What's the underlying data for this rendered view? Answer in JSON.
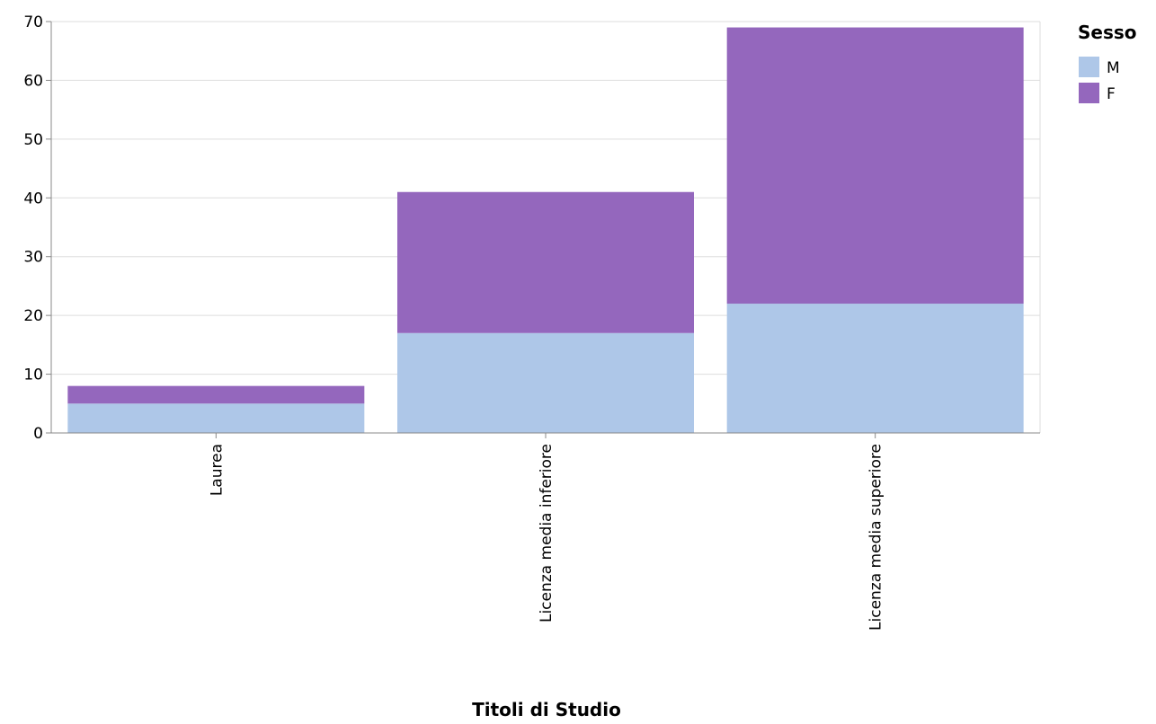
{
  "chart_data": {
    "type": "bar",
    "stacked": true,
    "categories": [
      "Laurea",
      "Licenza media inferiore",
      "Licenza media superiore"
    ],
    "series": [
      {
        "name": "M",
        "values": [
          5,
          17,
          22
        ],
        "color": "#aec7e8"
      },
      {
        "name": "F",
        "values": [
          3,
          24,
          47
        ],
        "color": "#9467bd"
      }
    ],
    "xlabel": "Titoli di Studio",
    "ylabel": "",
    "ylim": [
      0,
      70
    ],
    "yticks": [
      0,
      10,
      20,
      30,
      40,
      50,
      60,
      70
    ],
    "grid": true,
    "legend": {
      "title": "Sesso",
      "position": "top-right"
    }
  }
}
